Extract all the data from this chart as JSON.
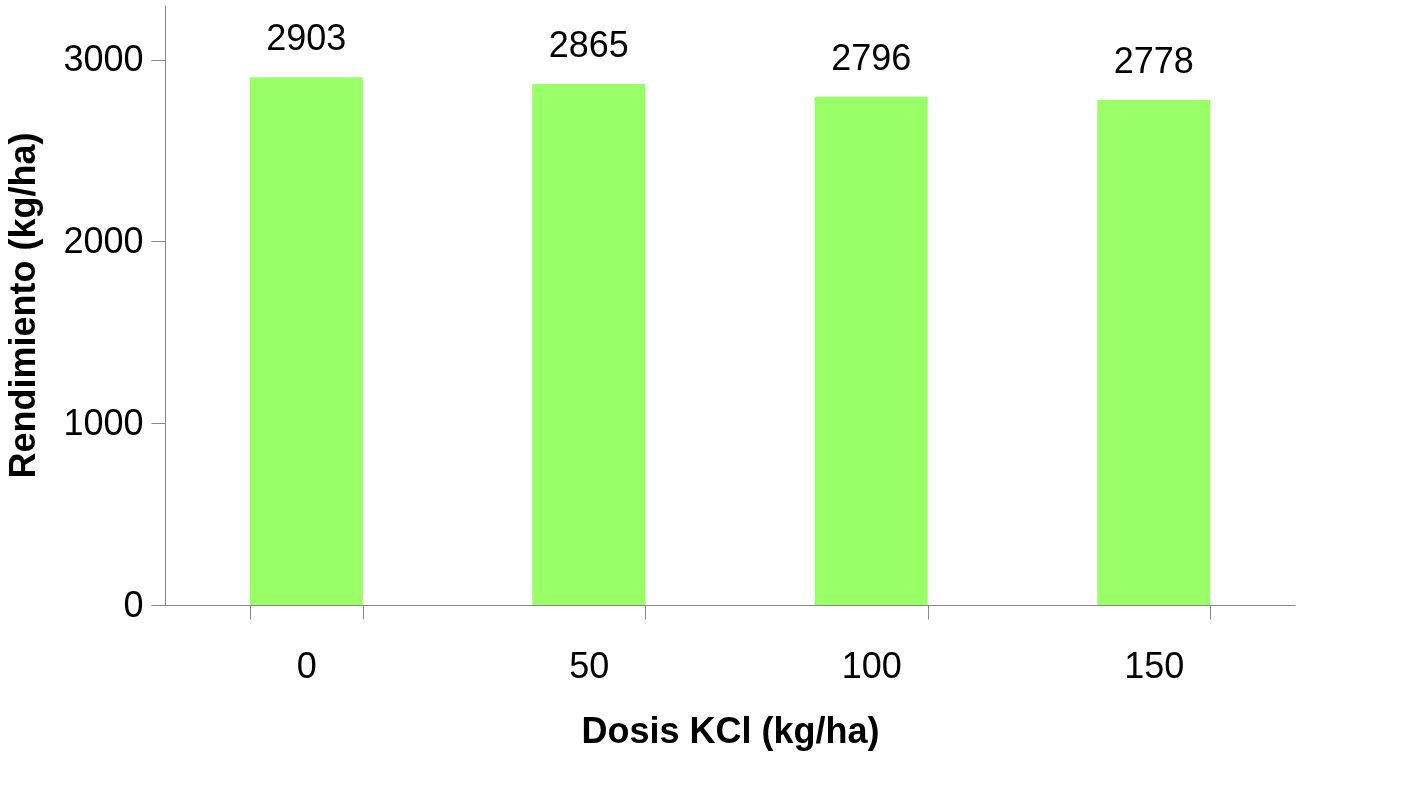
{
  "chart_data": {
    "type": "bar",
    "xlabel": "Dosis KCl (kg/ha)",
    "ylabel": "Rendimiento (kg/ha)",
    "categories": [
      "0",
      "50",
      "100",
      "150"
    ],
    "values": [
      2903,
      2865,
      2796,
      2778
    ],
    "color": "#99ff66",
    "ylim": [
      0,
      3300
    ],
    "yticks": [
      0,
      1000,
      2000,
      3000
    ],
    "data_labels": true,
    "grid": false
  }
}
